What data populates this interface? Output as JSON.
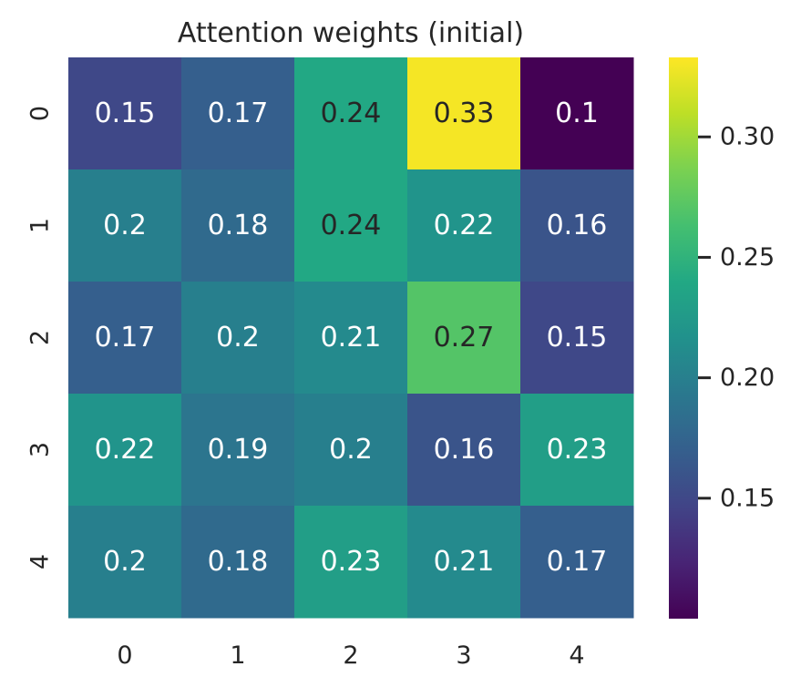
{
  "chart_data": {
    "type": "heatmap",
    "title": "Attention weights (initial)",
    "xlabel": "",
    "ylabel": "",
    "x_categories": [
      "0",
      "1",
      "2",
      "3",
      "4"
    ],
    "y_categories": [
      "0",
      "1",
      "2",
      "3",
      "4"
    ],
    "values": [
      [
        0.15,
        0.17,
        0.24,
        0.33,
        0.1
      ],
      [
        0.2,
        0.18,
        0.24,
        0.22,
        0.16
      ],
      [
        0.17,
        0.2,
        0.21,
        0.27,
        0.15
      ],
      [
        0.22,
        0.19,
        0.2,
        0.16,
        0.23
      ],
      [
        0.2,
        0.18,
        0.23,
        0.21,
        0.17
      ]
    ],
    "cell_labels": [
      [
        "0.15",
        "0.17",
        "0.24",
        "0.33",
        "0.1"
      ],
      [
        "0.2",
        "0.18",
        "0.24",
        "0.22",
        "0.16"
      ],
      [
        "0.17",
        "0.2",
        "0.21",
        "0.27",
        "0.15"
      ],
      [
        "0.22",
        "0.19",
        "0.2",
        "0.16",
        "0.23"
      ],
      [
        "0.2",
        "0.18",
        "0.23",
        "0.21",
        "0.17"
      ]
    ],
    "colormap": "viridis",
    "color_range": [
      0.1,
      0.333
    ],
    "colorbar": {
      "ticks": [
        0.15,
        0.2,
        0.25,
        0.3
      ],
      "tick_labels": [
        "0.15",
        "0.20",
        "0.25",
        "0.30"
      ]
    }
  },
  "colors": {
    "text": "#262626",
    "annotation_light": "#ffffff",
    "annotation_dark": "#262626",
    "background": "#ffffff"
  }
}
